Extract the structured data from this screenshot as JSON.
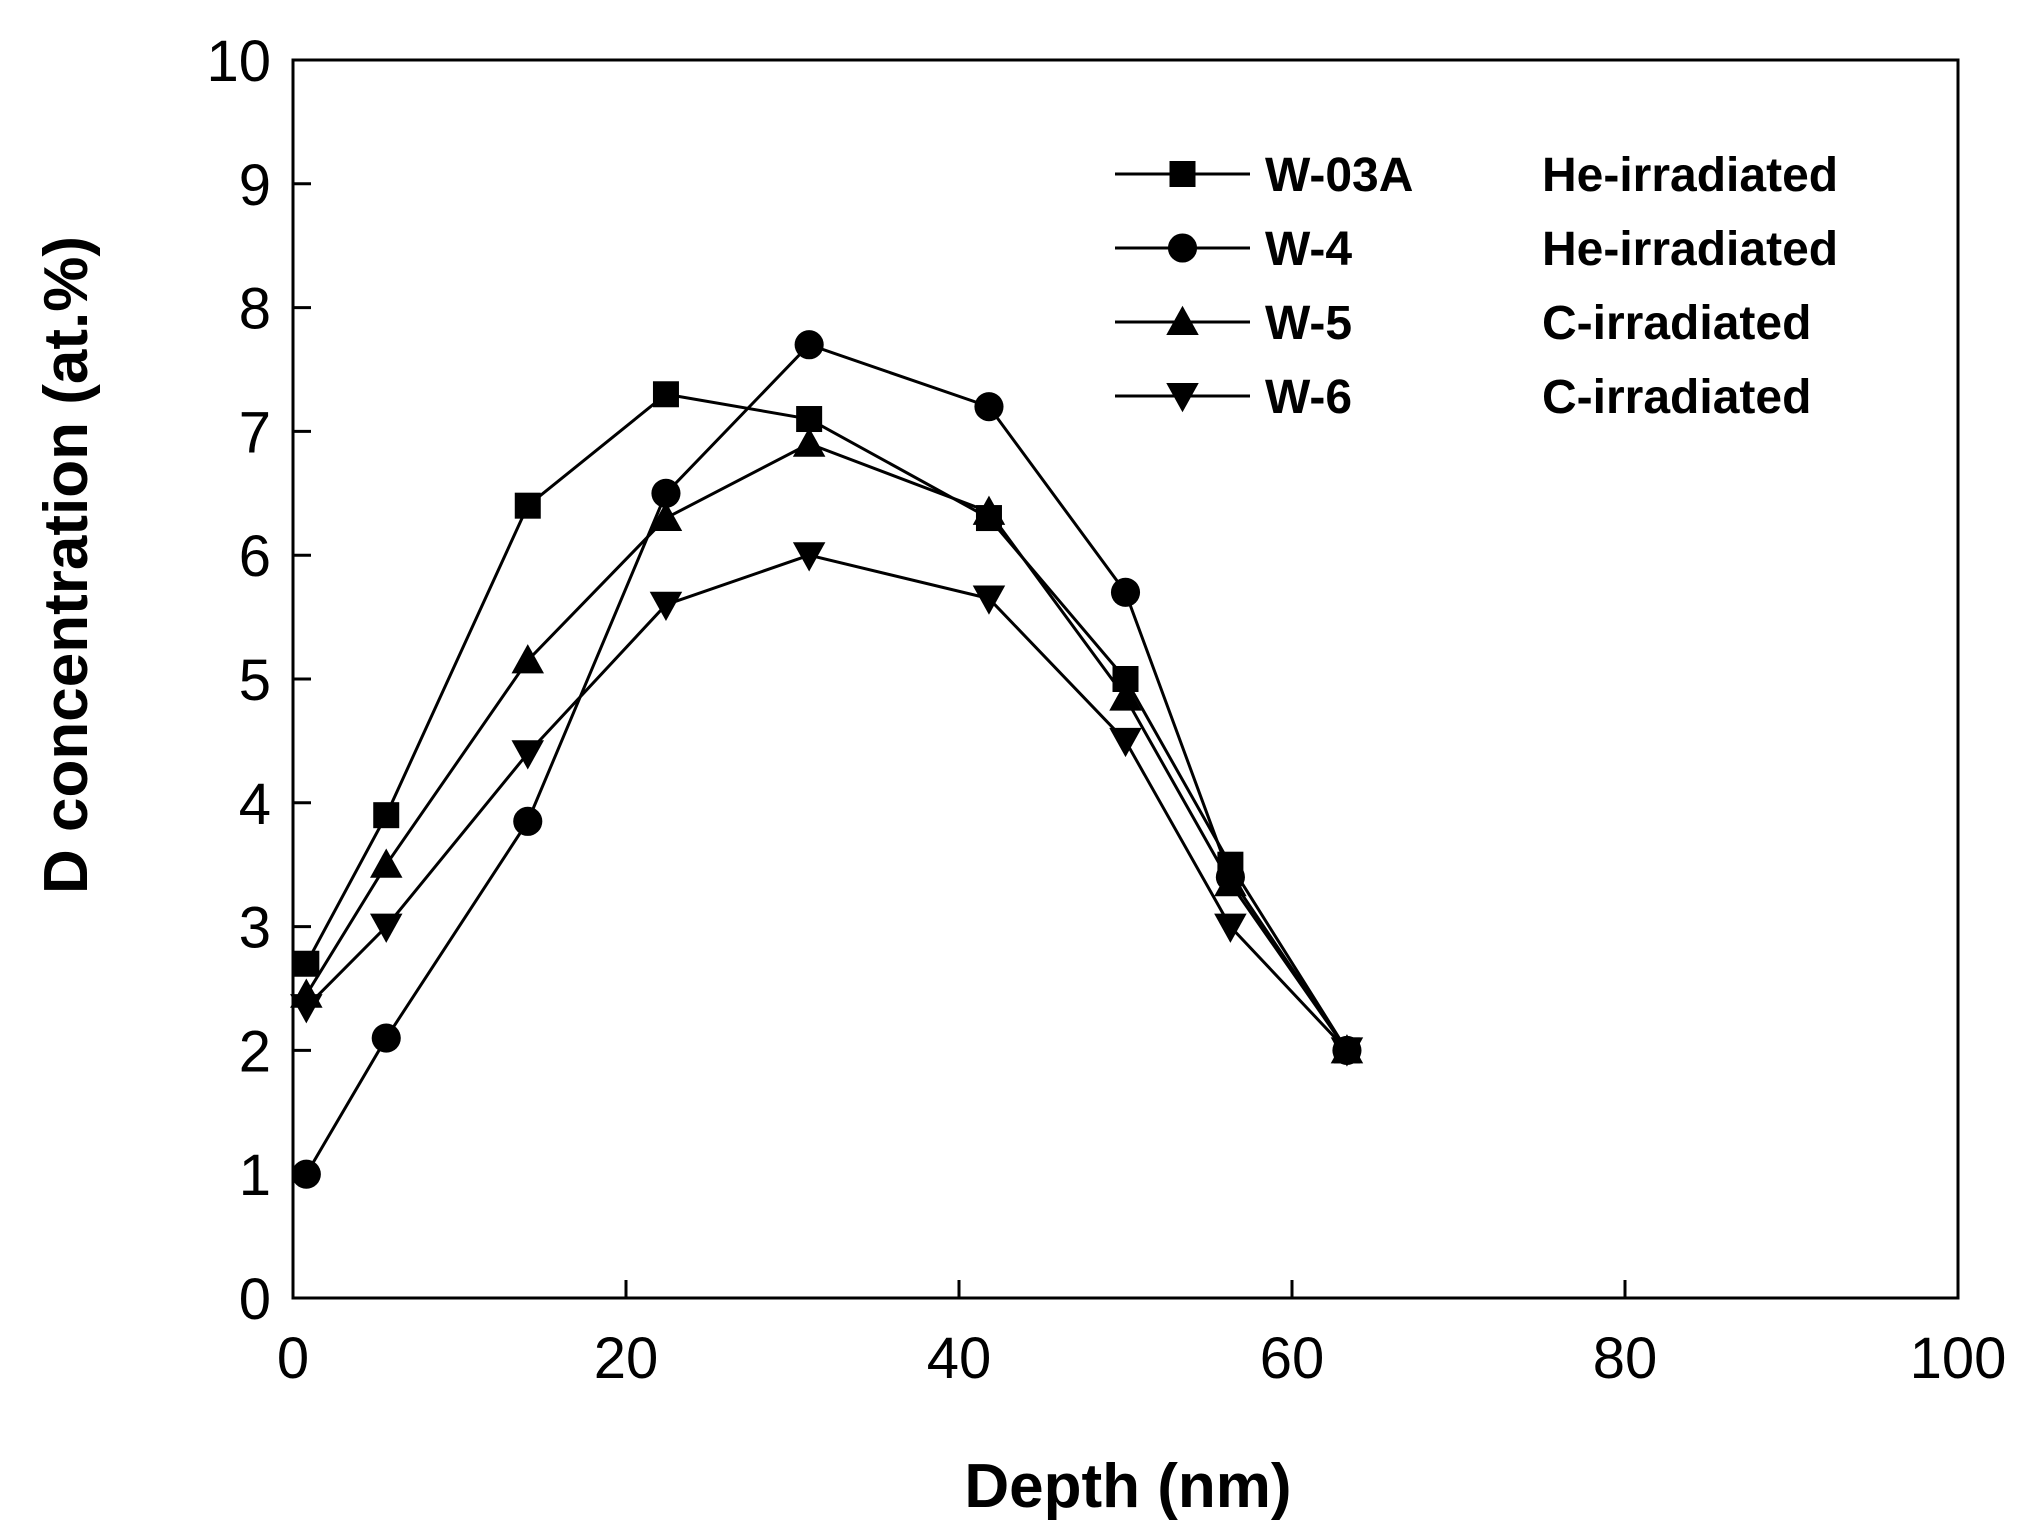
{
  "chart_data": {
    "type": "line",
    "xlabel": "Depth (nm)",
    "ylabel": "D concentration (at.%)",
    "xlim": [
      0,
      100
    ],
    "ylim": [
      0,
      10
    ],
    "xticks": [
      0,
      20,
      40,
      60,
      80,
      100
    ],
    "yticks": [
      0,
      1,
      2,
      3,
      4,
      5,
      6,
      7,
      8,
      9,
      10
    ],
    "grid": false,
    "legend_position": "top-right",
    "colors": {
      "line": "#000000",
      "background": "#ffffff"
    },
    "series": [
      {
        "name": "W-03A",
        "description": "He-irradiated",
        "marker": "square",
        "x": [
          0.8,
          5.6,
          14.1,
          22.4,
          31.0,
          41.8,
          50.0,
          56.3,
          63.3
        ],
        "y": [
          2.7,
          3.9,
          6.4,
          7.3,
          7.1,
          6.3,
          5.0,
          3.5,
          2.0
        ]
      },
      {
        "name": "W-4",
        "description": "He-irradiated",
        "marker": "circle",
        "x": [
          0.8,
          5.6,
          14.1,
          22.4,
          31.0,
          41.8,
          50.0,
          56.3,
          63.3
        ],
        "y": [
          1.0,
          2.1,
          3.85,
          6.5,
          7.7,
          7.2,
          5.7,
          3.4,
          2.0
        ]
      },
      {
        "name": "W-5",
        "description": "C-irradiated",
        "marker": "triangle-up",
        "x": [
          0.8,
          5.6,
          14.1,
          22.4,
          31.0,
          41.8,
          50.0,
          56.3,
          63.3
        ],
        "y": [
          2.45,
          3.5,
          5.15,
          6.3,
          6.9,
          6.35,
          4.85,
          3.35,
          2.0
        ]
      },
      {
        "name": "W-6",
        "description": "C-irradiated",
        "marker": "triangle-down",
        "x": [
          0.8,
          5.6,
          14.1,
          22.4,
          31.0,
          41.8,
          50.0,
          56.3,
          63.3
        ],
        "y": [
          2.35,
          3.0,
          4.4,
          5.6,
          6.0,
          5.65,
          4.5,
          3.0,
          2.0
        ]
      }
    ]
  }
}
